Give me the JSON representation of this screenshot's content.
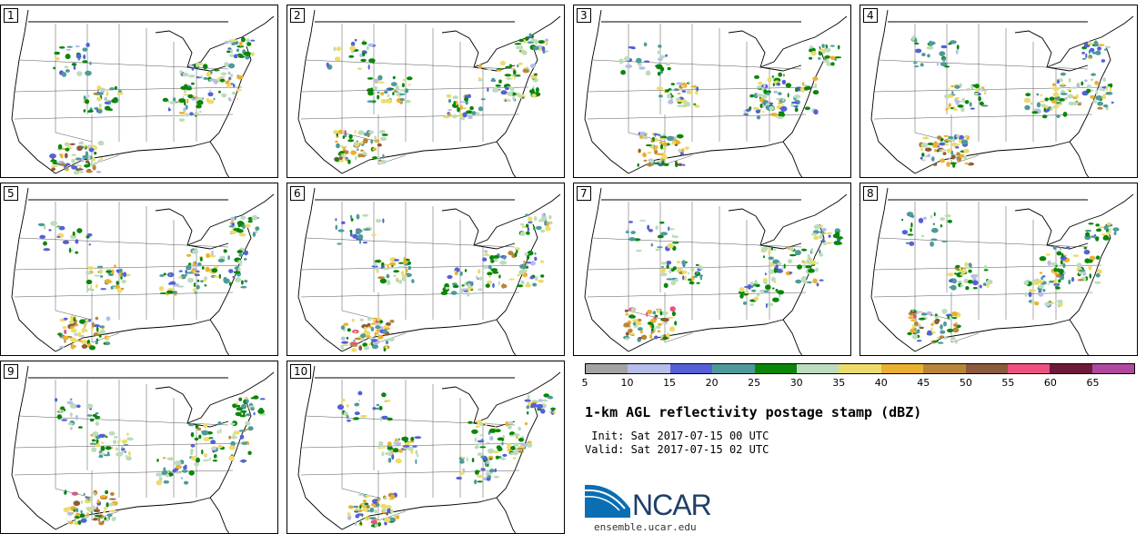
{
  "panels": [
    {
      "label": "1"
    },
    {
      "label": "2"
    },
    {
      "label": "3"
    },
    {
      "label": "4"
    },
    {
      "label": "5"
    },
    {
      "label": "6"
    },
    {
      "label": "7"
    },
    {
      "label": "8"
    },
    {
      "label": "9"
    },
    {
      "label": "10"
    }
  ],
  "colorbar": {
    "colors": [
      "#a3a3a3",
      "#b6bde8",
      "#5560d8",
      "#4e9a9a",
      "#0a860a",
      "#bcdcbc",
      "#ecdc6a",
      "#ecb030",
      "#b8863a",
      "#8c5a3c",
      "#ee5080",
      "#6e1a3a",
      "#b048a0"
    ],
    "ticks": [
      "5",
      "10",
      "15",
      "20",
      "25",
      "30",
      "35",
      "40",
      "45",
      "50",
      "55",
      "60",
      "65"
    ]
  },
  "title": "1-km AGL reflectivity postage stamp (dBZ)",
  "init_label": " Init: Sat 2017-07-15 00 UTC",
  "valid_label": "Valid: Sat 2017-07-15 02 UTC",
  "logo": {
    "text": "NCAR",
    "color": "#0a6eb4"
  },
  "website": "ensemble.ucar.edu"
}
